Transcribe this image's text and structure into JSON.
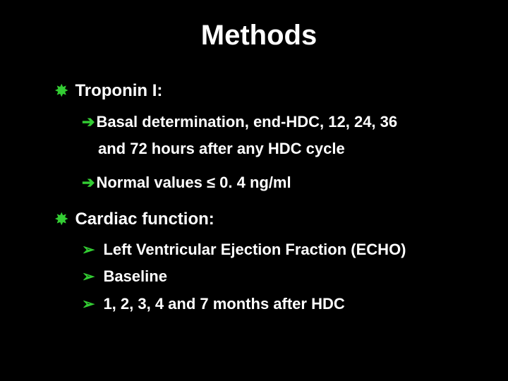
{
  "title": "Methods",
  "sections": [
    {
      "heading": "Troponin I:",
      "items": [
        {
          "bullet": "arrow",
          "text": "Basal determination, end-HDC, 12, 24, 36",
          "cont": "and 72 hours after any HDC cycle"
        },
        {
          "bullet": "arrow",
          "text": "Normal values ≤ 0. 4 ng/ml"
        }
      ]
    },
    {
      "heading": "Cardiac function:",
      "items": [
        {
          "bullet": "chev",
          "text": "Left Ventricular Ejection Fraction (ECHO)"
        },
        {
          "bullet": "chev",
          "text": "Baseline"
        },
        {
          "bullet": "chev",
          "text": "1, 2, 3, 4 and 7 months after HDC"
        }
      ]
    }
  ],
  "colors": {
    "background": "#000000",
    "text": "#ffffff",
    "accent": "#33cc33"
  }
}
